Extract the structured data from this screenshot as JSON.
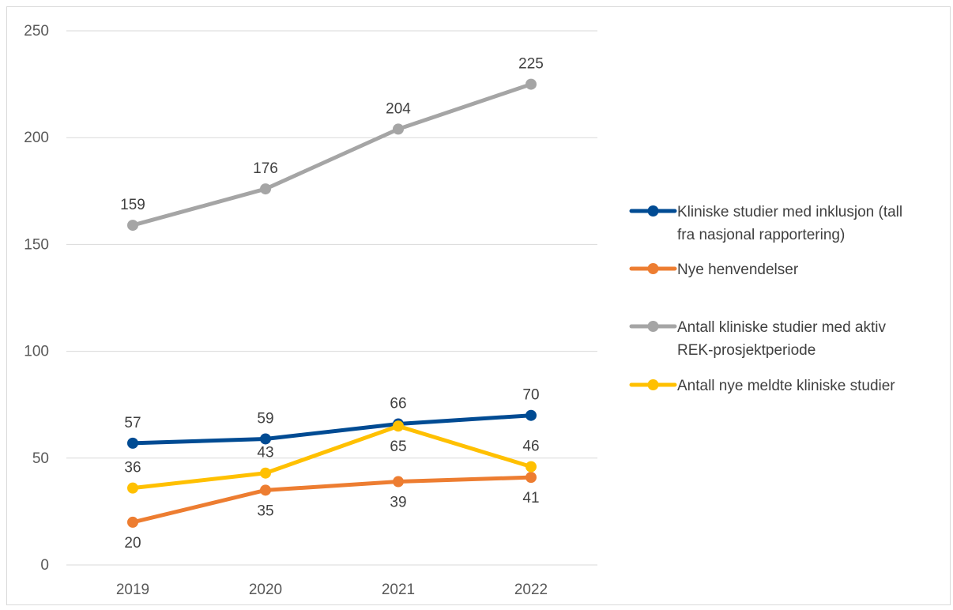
{
  "chart_data": {
    "type": "line",
    "title": "",
    "xlabel": "",
    "ylabel": "",
    "categories": [
      "2019",
      "2020",
      "2021",
      "2022"
    ],
    "ylim": [
      0,
      250
    ],
    "yticks": [
      0,
      50,
      100,
      150,
      200,
      250
    ],
    "grid": true,
    "legend_position": "right",
    "series": [
      {
        "name": "Kliniske studier med inklusjon (tall fra nasjonal rapportering)",
        "legend_lines": [
          "Kliniske studier med inklusjon (tall",
          "fra nasjonal rapportering)"
        ],
        "color": "#004b93",
        "values": [
          57,
          59,
          66,
          70
        ],
        "label_placement": [
          "above",
          "above",
          "above",
          "above"
        ]
      },
      {
        "name": "Nye henvendelser",
        "legend_lines": [
          "Nye henvendelser"
        ],
        "color": "#ed7d31",
        "values": [
          20,
          35,
          39,
          41
        ],
        "label_placement": [
          "below",
          "below",
          "below",
          "below"
        ]
      },
      {
        "name": "Antall kliniske studier med aktiv REK-prosjektperiode",
        "legend_lines": [
          "Antall kliniske studier med aktiv",
          "REK-prosjektperiode"
        ],
        "color": "#a5a5a5",
        "values": [
          159,
          176,
          204,
          225
        ],
        "label_placement": [
          "above",
          "above",
          "above",
          "above"
        ]
      },
      {
        "name": "Antall nye meldte kliniske studier",
        "legend_lines": [
          "Antall nye meldte kliniske studier"
        ],
        "color": "#ffc000",
        "values": [
          36,
          43,
          65,
          46
        ],
        "label_placement": [
          "above",
          "above",
          "below",
          "above"
        ]
      }
    ]
  }
}
